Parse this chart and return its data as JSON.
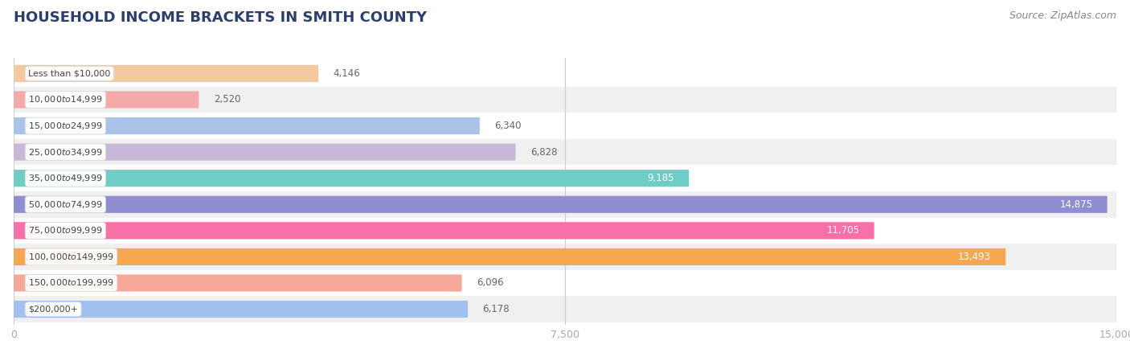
{
  "title": "HOUSEHOLD INCOME BRACKETS IN SMITH COUNTY",
  "source": "Source: ZipAtlas.com",
  "categories": [
    "Less than $10,000",
    "$10,000 to $14,999",
    "$15,000 to $24,999",
    "$25,000 to $34,999",
    "$35,000 to $49,999",
    "$50,000 to $74,999",
    "$75,000 to $99,999",
    "$100,000 to $149,999",
    "$150,000 to $199,999",
    "$200,000+"
  ],
  "values": [
    4146,
    2520,
    6340,
    6828,
    9185,
    14875,
    11705,
    13493,
    6096,
    6178
  ],
  "bar_colors": [
    "#F5C9A0",
    "#F5AAAA",
    "#A9C4E8",
    "#C8B8D8",
    "#6ECEC6",
    "#8E8ED0",
    "#F870A8",
    "#F5A850",
    "#F5A898",
    "#A0C0F0"
  ],
  "label_colors": [
    "#888888",
    "#888888",
    "#888888",
    "#888888",
    "#ffffff",
    "#ffffff",
    "#ffffff",
    "#ffffff",
    "#888888",
    "#888888"
  ],
  "xlim": [
    0,
    15000
  ],
  "xticks": [
    0,
    7500,
    15000
  ],
  "xticklabels": [
    "0",
    "7,500",
    "15,000"
  ],
  "title_fontsize": 13,
  "source_fontsize": 9,
  "bar_height": 0.65,
  "background_color": "#f7f7f7",
  "value_inside_threshold": 8500
}
